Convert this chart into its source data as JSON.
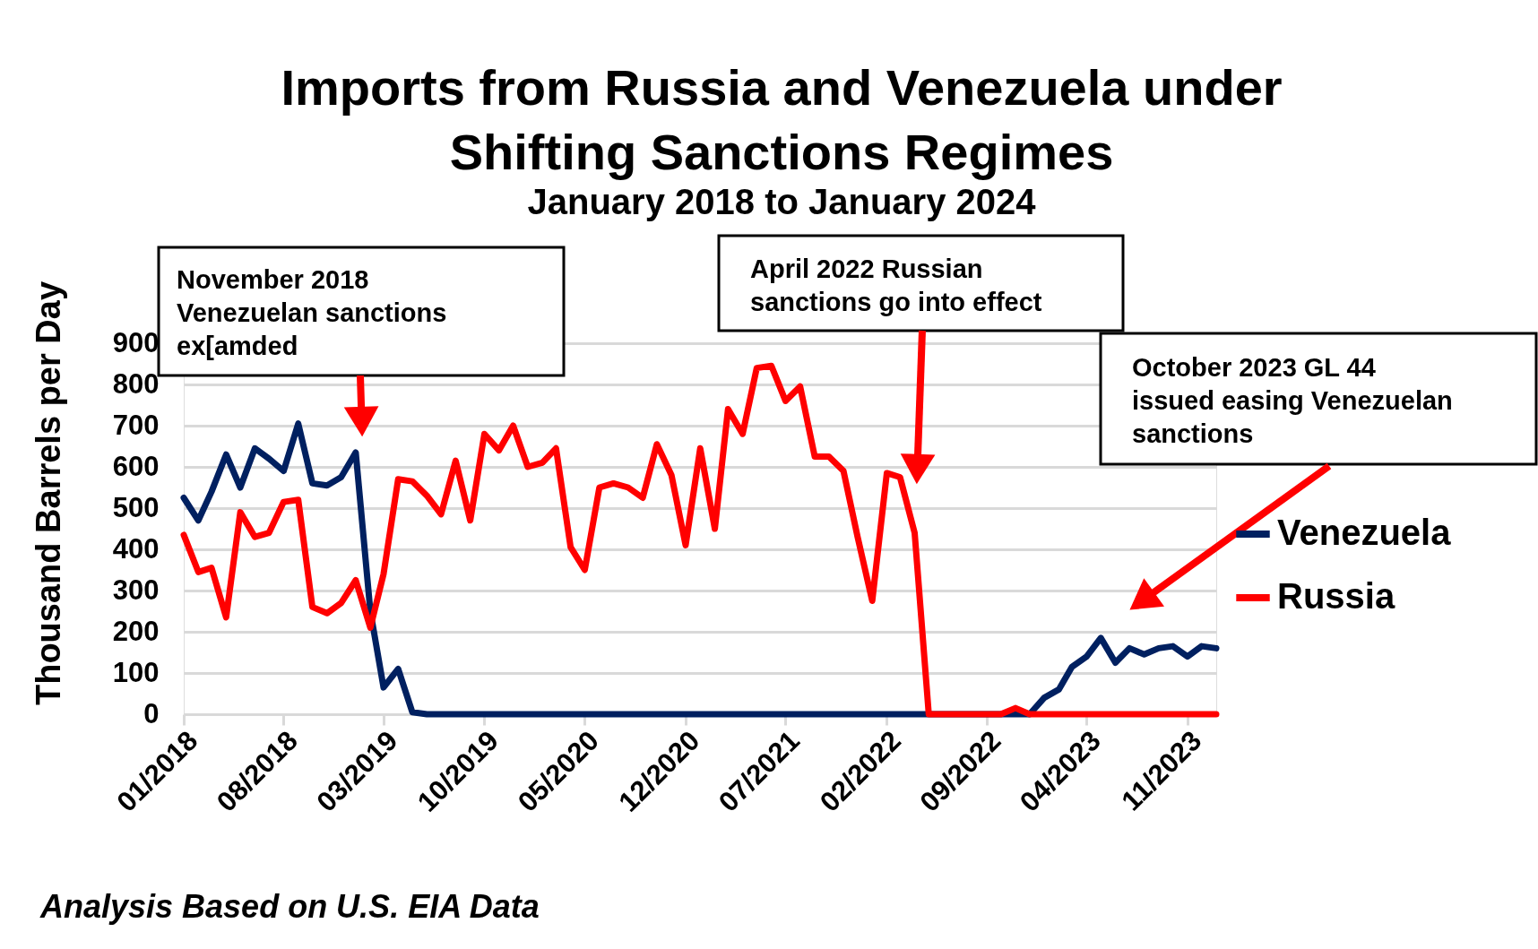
{
  "chart_data": {
    "type": "line",
    "title": "Imports from Russia and Venezuela under\nShifting Sanctions Regimes",
    "subtitle": "January 2018 to January 2024",
    "ylabel": "Thousand Barrels per Day",
    "x": [
      "2018-01",
      "2018-02",
      "2018-03",
      "2018-04",
      "2018-05",
      "2018-06",
      "2018-07",
      "2018-08",
      "2018-09",
      "2018-10",
      "2018-11",
      "2018-12",
      "2019-01",
      "2019-02",
      "2019-03",
      "2019-04",
      "2019-05",
      "2019-06",
      "2019-07",
      "2019-08",
      "2019-09",
      "2019-10",
      "2019-11",
      "2019-12",
      "2020-01",
      "2020-02",
      "2020-03",
      "2020-04",
      "2020-05",
      "2020-06",
      "2020-07",
      "2020-08",
      "2020-09",
      "2020-10",
      "2020-11",
      "2020-12",
      "2021-01",
      "2021-02",
      "2021-03",
      "2021-04",
      "2021-05",
      "2021-06",
      "2021-07",
      "2021-08",
      "2021-09",
      "2021-10",
      "2021-11",
      "2021-12",
      "2022-01",
      "2022-02",
      "2022-03",
      "2022-04",
      "2022-05",
      "2022-06",
      "2022-07",
      "2022-08",
      "2022-09",
      "2022-10",
      "2022-11",
      "2022-12",
      "2023-01",
      "2023-02",
      "2023-03",
      "2023-04",
      "2023-05",
      "2023-06",
      "2023-07",
      "2023-08",
      "2023-09",
      "2023-10",
      "2023-11",
      "2023-12",
      "2024-01"
    ],
    "series": [
      {
        "name": "Venezuela",
        "color": "#002060",
        "values": [
          525,
          470,
          540,
          630,
          550,
          645,
          620,
          590,
          705,
          560,
          555,
          575,
          635,
          250,
          65,
          110,
          5,
          0,
          0,
          0,
          0,
          0,
          0,
          0,
          0,
          0,
          0,
          0,
          0,
          0,
          0,
          0,
          0,
          0,
          0,
          0,
          0,
          0,
          0,
          0,
          0,
          0,
          0,
          0,
          0,
          0,
          0,
          0,
          0,
          0,
          0,
          0,
          0,
          0,
          0,
          0,
          0,
          0,
          0,
          0,
          40,
          60,
          115,
          140,
          185,
          125,
          160,
          145,
          160,
          165,
          140,
          165,
          160
        ]
      },
      {
        "name": "Russia",
        "color": "#ff0000",
        "values": [
          435,
          345,
          355,
          235,
          490,
          430,
          440,
          515,
          520,
          260,
          245,
          270,
          325,
          210,
          340,
          570,
          565,
          530,
          485,
          615,
          470,
          680,
          640,
          700,
          600,
          610,
          645,
          405,
          350,
          550,
          560,
          550,
          525,
          655,
          580,
          410,
          645,
          450,
          740,
          680,
          840,
          845,
          760,
          795,
          625,
          625,
          590,
          430,
          275,
          585,
          575,
          440,
          0,
          0,
          0,
          0,
          0,
          0,
          15,
          0,
          0,
          0,
          0,
          0,
          0,
          0,
          0,
          0,
          0,
          0,
          0,
          0,
          0
        ]
      }
    ],
    "xlim": [
      "2018-01",
      "2024-01"
    ],
    "xticks": [
      {
        "value": "2018-01",
        "label": "01/2018"
      },
      {
        "value": "2018-08",
        "label": "08/2018"
      },
      {
        "value": "2019-03",
        "label": "03/2019"
      },
      {
        "value": "2019-10",
        "label": "10/2019"
      },
      {
        "value": "2020-05",
        "label": "05/2020"
      },
      {
        "value": "2020-12",
        "label": "12/2020"
      },
      {
        "value": "2021-07",
        "label": "07/2021"
      },
      {
        "value": "2022-02",
        "label": "02/2022"
      },
      {
        "value": "2022-09",
        "label": "09/2022"
      },
      {
        "value": "2023-04",
        "label": "04/2023"
      },
      {
        "value": "2023-11",
        "label": "11/2023"
      }
    ],
    "ylim": [
      0,
      900
    ],
    "yticks": [
      0,
      100,
      200,
      300,
      400,
      500,
      600,
      700,
      800,
      900
    ],
    "grid": "y",
    "legend": "right",
    "annotations": [
      "November 2018\nVenezuelan sanctions\nex[amded",
      "April 2022 Russian\nsanctions go into effect",
      "October 2023 GL 44\nissued easing Venezuelan\nsanctions",
      "Analysis Based on U.S. EIA Data"
    ]
  }
}
